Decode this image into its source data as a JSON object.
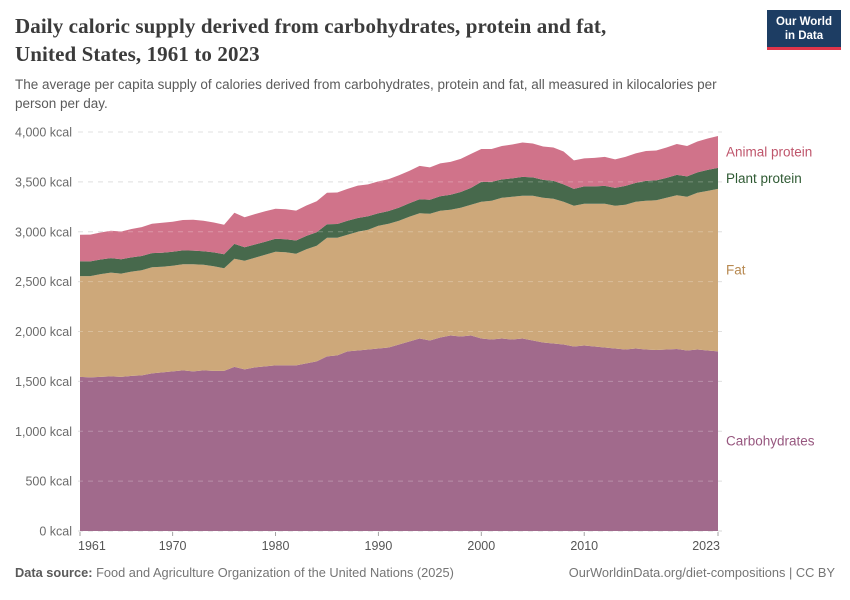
{
  "header": {
    "title_line1": "Daily caloric supply derived from carbohydrates, protein and fat,",
    "title_line2": "United States, 1961 to 2023",
    "subtitle": "The average per capita supply of calories derived from carbohydrates, protein and fat, all measured in kilocalories per person per day.",
    "logo": {
      "line1": "Our World",
      "line2": "in Data",
      "bg": "#1d3d63",
      "accent": "#e0354a"
    }
  },
  "footer": {
    "datasource_label": "Data source:",
    "datasource_text": " Food and Agriculture Organization of the United Nations (2025)",
    "link_text": "OurWorldinData.org/diet-compositions | CC BY"
  },
  "chart_data": {
    "type": "area",
    "stacked": true,
    "title": "Daily caloric supply derived from carbohydrates, protein and fat, United States, 1961 to 2023",
    "xlabel": "",
    "ylabel": "kcal per person per day",
    "xlim": [
      1961,
      2023
    ],
    "ylim": [
      0,
      4000
    ],
    "grid": "dashed-horizontal",
    "legend_position": "right-of-plot",
    "x": [
      1961,
      1962,
      1963,
      1964,
      1965,
      1966,
      1967,
      1968,
      1969,
      1970,
      1971,
      1972,
      1973,
      1974,
      1975,
      1976,
      1977,
      1978,
      1979,
      1980,
      1981,
      1982,
      1983,
      1984,
      1985,
      1986,
      1987,
      1988,
      1989,
      1990,
      1991,
      1992,
      1993,
      1994,
      1995,
      1996,
      1997,
      1998,
      1999,
      2000,
      2001,
      2002,
      2003,
      2004,
      2005,
      2006,
      2007,
      2008,
      2009,
      2010,
      2011,
      2012,
      2013,
      2014,
      2015,
      2016,
      2017,
      2018,
      2019,
      2020,
      2021,
      2022,
      2023
    ],
    "series": [
      {
        "id": "carbohydrates",
        "name": "Carbohydrates",
        "color": "#a16a8c",
        "label_color": "#97577f",
        "values": [
          1545,
          1540,
          1545,
          1550,
          1545,
          1555,
          1560,
          1580,
          1590,
          1600,
          1610,
          1600,
          1610,
          1605,
          1605,
          1645,
          1620,
          1640,
          1650,
          1660,
          1660,
          1660,
          1680,
          1700,
          1750,
          1760,
          1800,
          1810,
          1820,
          1830,
          1840,
          1870,
          1900,
          1930,
          1910,
          1940,
          1960,
          1950,
          1960,
          1930,
          1920,
          1930,
          1920,
          1930,
          1910,
          1890,
          1880,
          1870,
          1850,
          1860,
          1850,
          1840,
          1830,
          1820,
          1830,
          1820,
          1815,
          1820,
          1825,
          1810,
          1820,
          1810,
          1800
        ]
      },
      {
        "id": "fat",
        "name": "Fat",
        "color": "#cda87a",
        "label_color": "#b88a52",
        "values": [
          1010,
          1015,
          1030,
          1040,
          1035,
          1045,
          1055,
          1065,
          1060,
          1060,
          1065,
          1075,
          1060,
          1050,
          1030,
          1085,
          1090,
          1100,
          1120,
          1140,
          1135,
          1120,
          1145,
          1160,
          1190,
          1180,
          1170,
          1190,
          1200,
          1230,
          1240,
          1240,
          1250,
          1255,
          1270,
          1270,
          1260,
          1290,
          1310,
          1370,
          1390,
          1410,
          1430,
          1430,
          1450,
          1450,
          1450,
          1430,
          1410,
          1420,
          1430,
          1440,
          1430,
          1450,
          1470,
          1490,
          1500,
          1520,
          1540,
          1540,
          1570,
          1600,
          1630
        ]
      },
      {
        "id": "plant-protein",
        "name": "Plant protein",
        "color": "#47694c",
        "label_color": "#2f5a33",
        "values": [
          150,
          148,
          147,
          146,
          145,
          143,
          142,
          141,
          140,
          140,
          138,
          136,
          135,
          138,
          140,
          148,
          135,
          132,
          130,
          130,
          130,
          132,
          133,
          135,
          135,
          138,
          140,
          138,
          135,
          125,
          128,
          132,
          135,
          140,
          140,
          145,
          150,
          158,
          170,
          200,
          190,
          185,
          185,
          190,
          185,
          180,
          180,
          175,
          170,
          175,
          175,
          180,
          180,
          190,
          190,
          200,
          200,
          200,
          205,
          205,
          205,
          210,
          210
        ]
      },
      {
        "id": "animal-protein",
        "name": "Animal protein",
        "color": "#d0738a",
        "label_color": "#bf566c",
        "values": [
          265,
          268,
          270,
          275,
          278,
          285,
          290,
          295,
          300,
          300,
          305,
          310,
          305,
          300,
          295,
          312,
          300,
          305,
          305,
          300,
          300,
          300,
          305,
          310,
          315,
          315,
          320,
          325,
          320,
          320,
          320,
          325,
          325,
          335,
          325,
          330,
          330,
          332,
          340,
          330,
          330,
          335,
          340,
          345,
          340,
          335,
          335,
          330,
          285,
          280,
          285,
          290,
          285,
          290,
          295,
          300,
          300,
          305,
          310,
          305,
          310,
          315,
          320
        ]
      }
    ],
    "yticks": [
      {
        "v": 0,
        "label": "0 kcal"
      },
      {
        "v": 500,
        "label": "500 kcal"
      },
      {
        "v": 1000,
        "label": "1,000 kcal"
      },
      {
        "v": 1500,
        "label": "1,500 kcal"
      },
      {
        "v": 2000,
        "label": "2,000 kcal"
      },
      {
        "v": 2500,
        "label": "2,500 kcal"
      },
      {
        "v": 3000,
        "label": "3,000 kcal"
      },
      {
        "v": 3500,
        "label": "3,500 kcal"
      },
      {
        "v": 4000,
        "label": "4,000 kcal"
      }
    ],
    "xticks": [
      {
        "v": 1961,
        "label": "1961"
      },
      {
        "v": 1970,
        "label": "1970"
      },
      {
        "v": 1980,
        "label": "1980"
      },
      {
        "v": 1990,
        "label": "1990"
      },
      {
        "v": 2000,
        "label": "2000"
      },
      {
        "v": 2010,
        "label": "2010"
      },
      {
        "v": 2023,
        "label": "2023"
      }
    ],
    "colors": {
      "gridline": "#d7d7d7",
      "gridline_over_area": "rgba(255,255,255,0.25)",
      "axis_text": "#6b6b6b",
      "tick_mark": "#a3a3a3"
    }
  }
}
